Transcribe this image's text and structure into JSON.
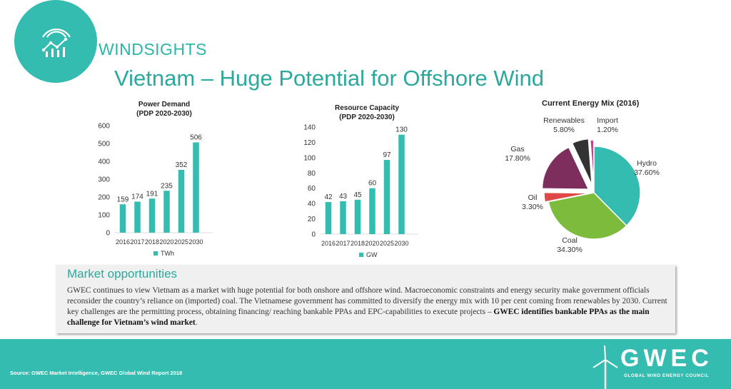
{
  "header": {
    "brand": "WINDSIGHTS",
    "title": "Vietnam – Huge Potential for Offshore Wind"
  },
  "colors": {
    "accent": "#35bcb0",
    "bar": "#35bcb0"
  },
  "chart_data": [
    {
      "type": "bar",
      "title": "Power Demand",
      "subtitle": "(PDP 2020-2030)",
      "categories": [
        "2016",
        "2017",
        "2018",
        "2020",
        "2025",
        "2030"
      ],
      "series": [
        {
          "name": "TWh",
          "values": [
            159,
            174,
            191,
            235,
            352,
            506
          ]
        }
      ],
      "yticks": [
        0,
        100,
        200,
        300,
        400,
        500,
        600
      ],
      "ylim": [
        0,
        600
      ],
      "legend": "bottom"
    },
    {
      "type": "bar",
      "title": "Resource Capacity",
      "subtitle": "(PDP 2020-2030)",
      "categories": [
        "2016",
        "2017",
        "2018",
        "2020",
        "2025",
        "2030"
      ],
      "series": [
        {
          "name": "GW",
          "values": [
            42,
            43,
            45,
            60,
            97,
            130
          ]
        }
      ],
      "yticks": [
        0,
        20,
        40,
        60,
        80,
        100,
        120,
        140
      ],
      "ylim": [
        0,
        140
      ],
      "legend": "bottom"
    },
    {
      "type": "pie",
      "title": "Current Energy Mix (2016)",
      "slices": [
        {
          "label": "Hydro",
          "value": 37.6,
          "text": "37.60%",
          "color": "#35bcb0"
        },
        {
          "label": "Coal",
          "value": 34.3,
          "text": "34.30%",
          "color": "#7dbb3c"
        },
        {
          "label": "Oil",
          "value": 3.3,
          "text": "3.30%",
          "color": "#e04848"
        },
        {
          "label": "Gas",
          "value": 17.8,
          "text": "17.80%",
          "color": "#7d2e5c"
        },
        {
          "label": "Renewables",
          "value": 5.8,
          "text": "5.80%",
          "color": "#333333"
        },
        {
          "label": "Import",
          "value": 1.2,
          "text": "1.20%",
          "color": "#c23a8a"
        }
      ]
    }
  ],
  "market": {
    "heading": "Market opportunities",
    "body": "GWEC continues to view Vietnam as a market with huge potential for both onshore and offshore wind. Macroeconomic constraints and energy security make government officials reconsider the country’s reliance on (imported) coal. The Vietnamese government has committed to diversify the energy mix with 10 per cent coming from renewables by 2030. Current key challenges are the permitting process, obtaining financing/ reaching bankable PPAs and EPC-capabilities to execute projects – ",
    "emphasis": "GWEC identifies bankable PPAs as the main challenge for Vietnam’s wind market",
    "end": "."
  },
  "footer": {
    "source": "Source: GWEC Market Intelligence, GWEC Global Wind Report 2018",
    "org_name": "GWEC",
    "org_full": "GLOBAL WIND ENERGY COUNCIL"
  }
}
